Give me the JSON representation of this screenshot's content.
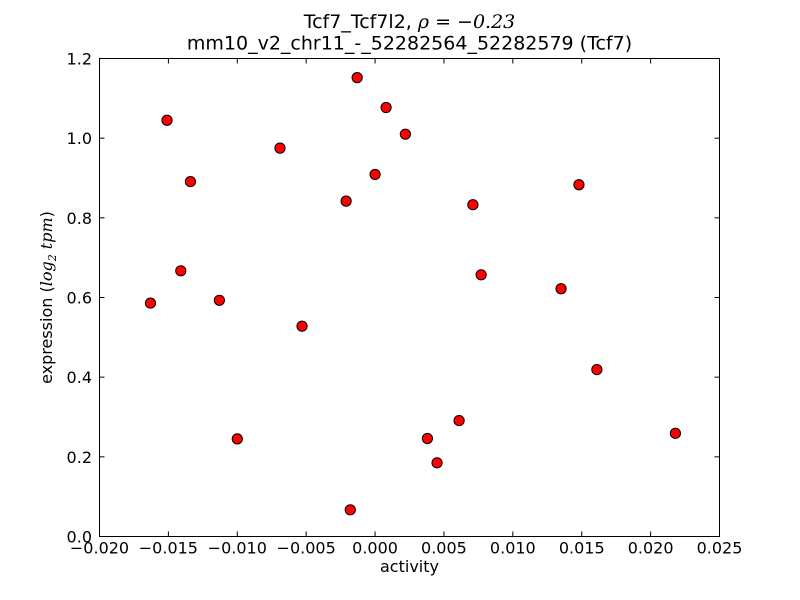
{
  "figure": {
    "background": "#ffffff",
    "title_prefix": "Tcf7_Tcf7l2, ",
    "title_math": "ρ = −0.23",
    "subtitle": "mm10_v2_chr11_-_52282564_52282579 (Tcf7)",
    "xlabel": "activity",
    "ylabel_prefix": "expression (",
    "ylabel_math_base": "log",
    "ylabel_math_sub": "2",
    "ylabel_math_rest": "tpm",
    "ylabel_suffix": ")"
  },
  "chart_data": {
    "type": "scatter",
    "title": "Tcf7_Tcf7l2, ρ = −0.23",
    "subtitle": "mm10_v2_chr11_-_52282564_52282579 (Tcf7)",
    "xlabel": "activity",
    "ylabel": "expression (log2 tpm)",
    "xlim": [
      -0.02,
      0.025
    ],
    "ylim": [
      0.0,
      1.2
    ],
    "xticks": [
      -0.02,
      -0.015,
      -0.01,
      -0.005,
      0.0,
      0.005,
      0.01,
      0.015,
      0.02,
      0.025
    ],
    "xtick_labels": [
      "−0.020",
      "−0.015",
      "−0.010",
      "−0.005",
      "0.000",
      "0.005",
      "0.010",
      "0.015",
      "0.020",
      "0.025"
    ],
    "yticks": [
      0.0,
      0.2,
      0.4,
      0.6,
      0.8,
      1.0,
      1.2
    ],
    "ytick_labels": [
      "0.0",
      "0.2",
      "0.4",
      "0.6",
      "0.8",
      "1.0",
      "1.2"
    ],
    "grid": false,
    "legend": null,
    "marker": {
      "shape": "circle",
      "fill": "#ff0000",
      "edge": "#000000",
      "radius": 5.1
    },
    "frame_color": "#000000",
    "points": [
      [
        -0.0163,
        0.586
      ],
      [
        -0.0151,
        1.045
      ],
      [
        -0.0141,
        0.667
      ],
      [
        -0.0134,
        0.891
      ],
      [
        -0.0113,
        0.593
      ],
      [
        -0.01,
        0.245
      ],
      [
        -0.0069,
        0.975
      ],
      [
        -0.0053,
        0.528
      ],
      [
        -0.0021,
        0.842
      ],
      [
        -0.0018,
        0.067
      ],
      [
        -0.0013,
        1.152
      ],
      [
        0.0,
        0.909
      ],
      [
        0.0008,
        1.077
      ],
      [
        0.0022,
        1.01
      ],
      [
        0.0038,
        0.246
      ],
      [
        0.0045,
        0.185
      ],
      [
        0.0061,
        0.291
      ],
      [
        0.0071,
        0.833
      ],
      [
        0.0077,
        0.657
      ],
      [
        0.0135,
        0.622
      ],
      [
        0.0148,
        0.883
      ],
      [
        0.0161,
        0.419
      ],
      [
        0.0218,
        0.259
      ]
    ]
  }
}
